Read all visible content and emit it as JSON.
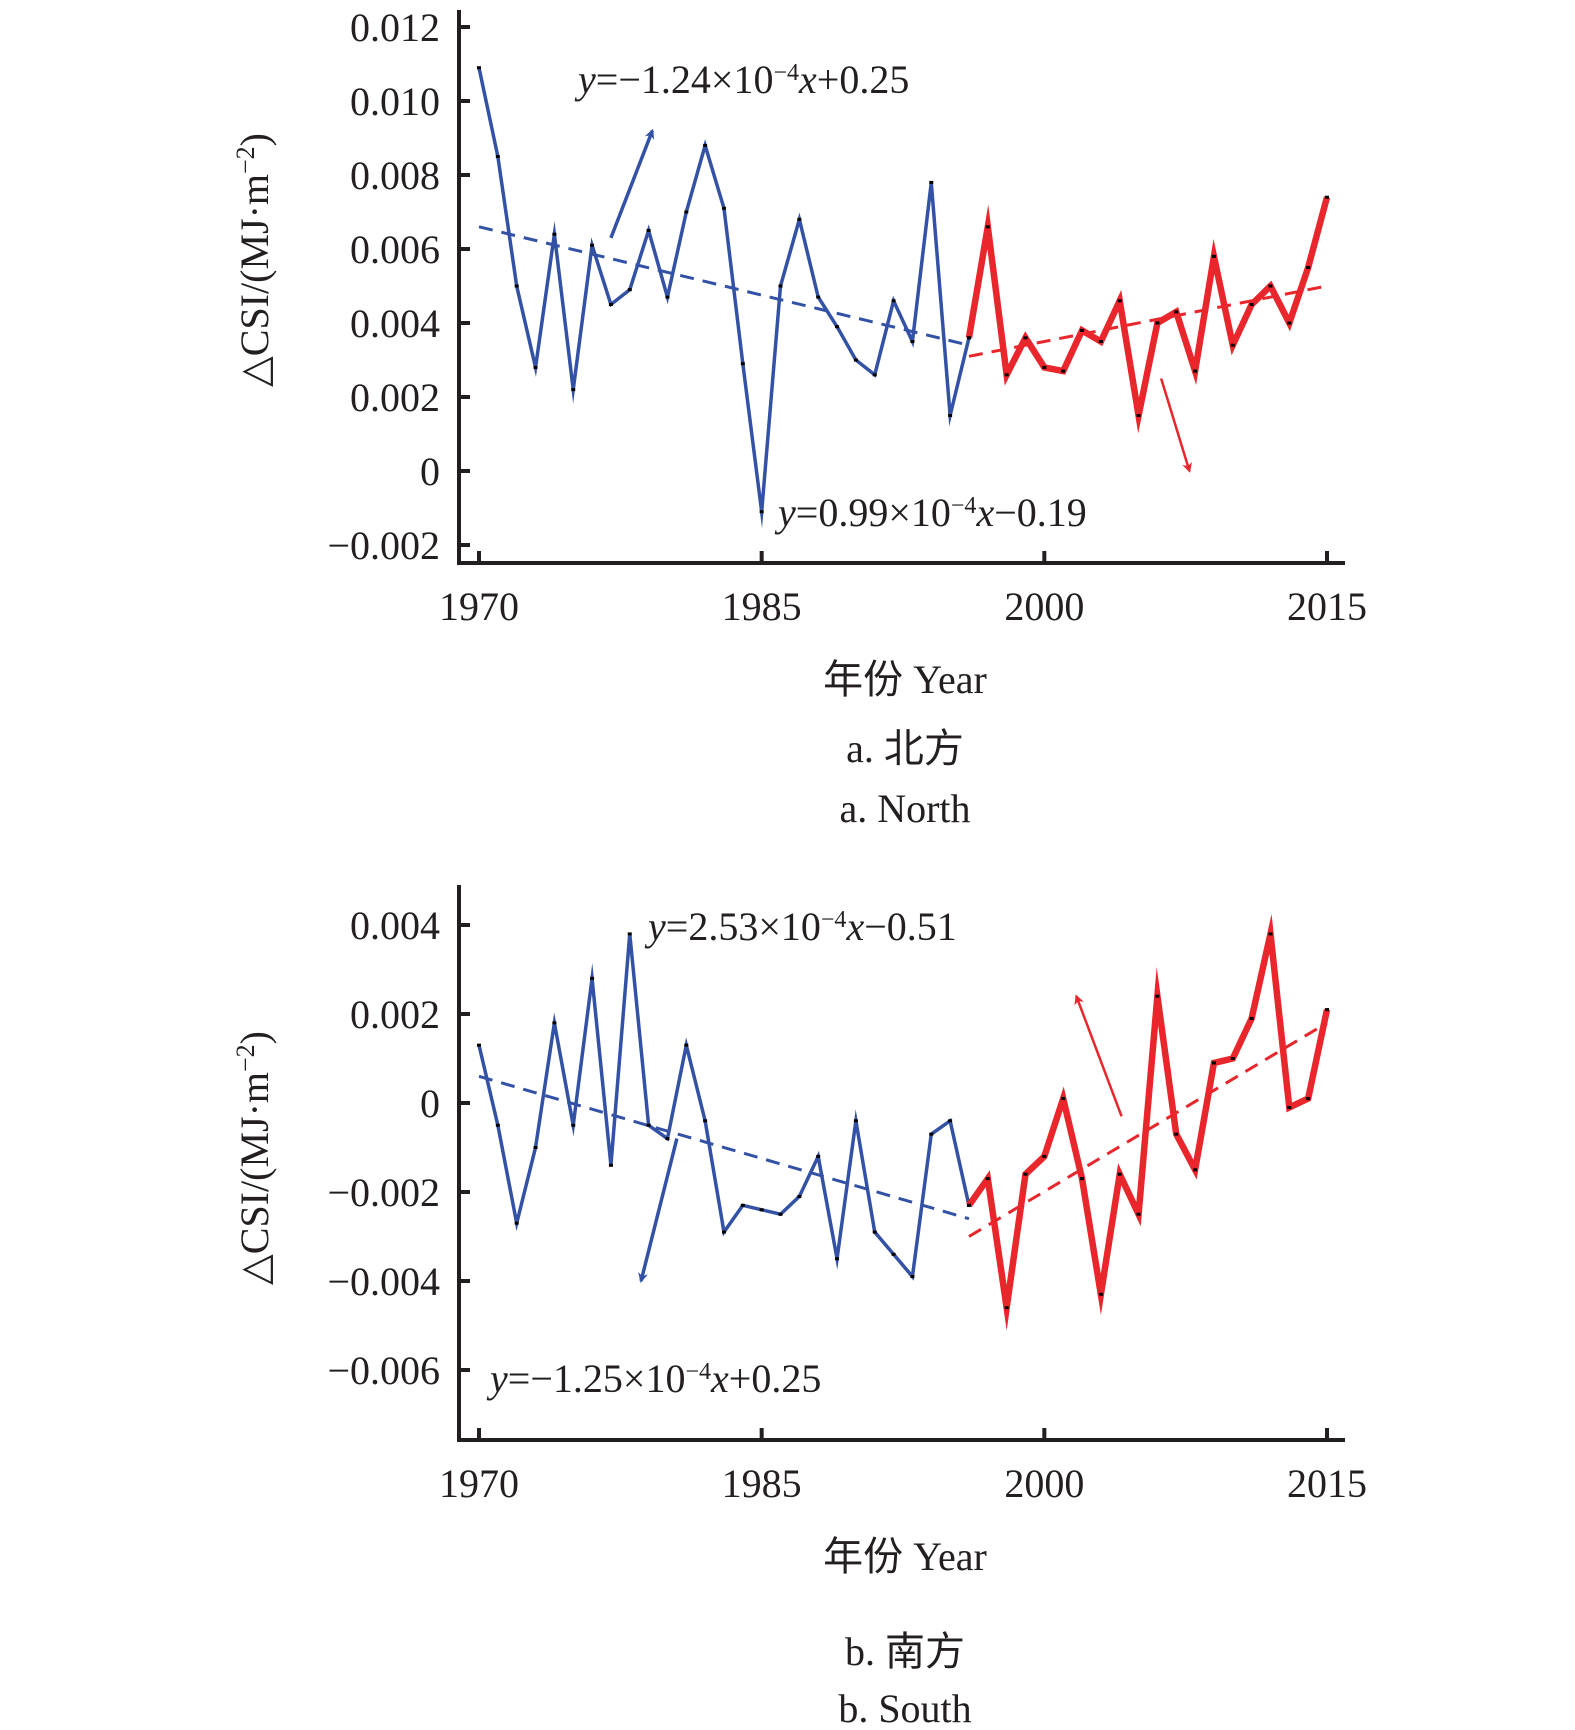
{
  "figure": {
    "colors": {
      "early": "#3352a6",
      "late": "#e8262b",
      "axis": "#231f20",
      "marker": "#000000"
    }
  },
  "chart_data": [
    {
      "id": "north",
      "type": "line",
      "title": "",
      "caption_cn": "a. 北方",
      "caption_en": "a. North",
      "xlabel": "年份 Year",
      "ylabel": "△CSI/(MJ·m⁻²)",
      "ylabel_main": "△CSI/(MJ·m",
      "ylabel_sup": "−2",
      "ylabel_close": ")",
      "xlim": [
        1969,
        2016
      ],
      "ylim": [
        -0.0025,
        0.0125
      ],
      "xticks": [
        1970,
        1985,
        2000,
        2015
      ],
      "xtick_labels": [
        "1970",
        "1985",
        "2000",
        "2015"
      ],
      "yticks": [
        0.012,
        0.01,
        0.008,
        0.006,
        0.004,
        0.002,
        0,
        -0.002
      ],
      "ytick_labels": [
        "0.012",
        "0.010",
        "0.008",
        "0.006",
        "0.004",
        "0.002",
        "0",
        "−0.002"
      ],
      "grid": false,
      "series": [
        {
          "name": "1970–1996",
          "color": "#3352a6",
          "x": [
            1970,
            1971,
            1972,
            1973,
            1974,
            1975,
            1976,
            1977,
            1978,
            1979,
            1980,
            1981,
            1982,
            1983,
            1984,
            1985,
            1986,
            1987,
            1988,
            1989,
            1990,
            1991,
            1992,
            1993,
            1994,
            1995,
            1996
          ],
          "values": [
            0.0109,
            0.0085,
            0.005,
            0.0028,
            0.0064,
            0.0022,
            0.0061,
            0.0045,
            0.0049,
            0.0065,
            0.0047,
            0.007,
            0.0088,
            0.0071,
            0.0029,
            -0.0011,
            0.005,
            0.0068,
            0.0047,
            0.0039,
            0.003,
            0.0026,
            0.0046,
            0.0035,
            0.0078,
            0.0015,
            0.0036
          ]
        },
        {
          "name": "1996–2015",
          "color": "#e8262b",
          "x": [
            1996,
            1997,
            1998,
            1999,
            2000,
            2001,
            2002,
            2003,
            2004,
            2005,
            2006,
            2007,
            2008,
            2009,
            2010,
            2011,
            2012,
            2013,
            2014,
            2015
          ],
          "values": [
            0.0036,
            0.0066,
            0.0026,
            0.0036,
            0.0028,
            0.0027,
            0.0038,
            0.0035,
            0.0046,
            0.0015,
            0.004,
            0.0043,
            0.0027,
            0.0058,
            0.0034,
            0.0045,
            0.005,
            0.004,
            0.0055,
            0.0074
          ]
        }
      ],
      "trendlines": [
        {
          "series": "1970–1996",
          "x": [
            1970,
            1996
          ],
          "y": [
            0.0066,
            0.0034
          ],
          "color": "#3352a6"
        },
        {
          "series": "1996–2015",
          "x": [
            1996,
            2015
          ],
          "y": [
            0.0031,
            0.005
          ],
          "color": "#e8262b"
        }
      ],
      "annotations": [
        {
          "text_y": "y",
          "text_pre": "=−1.24×10",
          "text_sup": "−4",
          "text_x": "x",
          "text_post": "+0.25",
          "series": "1970–1996"
        },
        {
          "text_y": "y",
          "text_pre": "=0.99×10",
          "text_sup": "−4",
          "text_x": "x",
          "text_post": "−0.19",
          "series": "1996–2015"
        }
      ],
      "arrows": [
        {
          "color": "#3352a6",
          "from": [
            1977,
            0.0063
          ],
          "to": [
            1979.2,
            0.0092
          ]
        },
        {
          "color": "#e8262b",
          "from": [
            2006.2,
            0.0025
          ],
          "to": [
            2007.7,
            0.0
          ]
        }
      ]
    },
    {
      "id": "south",
      "type": "line",
      "title": "",
      "caption_cn": "b. 南方",
      "caption_en": "b. South",
      "xlabel": "年份 Year",
      "ylabel": "△CSI/(MJ·m⁻²)",
      "ylabel_main": "△CSI/(MJ·m",
      "ylabel_sup": "−2",
      "ylabel_close": ")",
      "xlim": [
        1969,
        2016
      ],
      "ylim": [
        -0.0075,
        0.005
      ],
      "xticks": [
        1970,
        1985,
        2000,
        2015
      ],
      "xtick_labels": [
        "1970",
        "1985",
        "2000",
        "2015"
      ],
      "yticks": [
        0.004,
        0.002,
        0,
        -0.002,
        -0.004,
        -0.006
      ],
      "ytick_labels": [
        "0.004",
        "0.002",
        "0",
        "−0.002",
        "−0.004",
        "−0.006"
      ],
      "grid": false,
      "series": [
        {
          "name": "1970–1996",
          "color": "#3352a6",
          "x": [
            1970,
            1971,
            1972,
            1973,
            1974,
            1975,
            1976,
            1977,
            1978,
            1979,
            1980,
            1981,
            1982,
            1983,
            1984,
            1985,
            1986,
            1987,
            1988,
            1989,
            1990,
            1991,
            1992,
            1993,
            1994,
            1995,
            1996
          ],
          "values": [
            0.0013,
            -0.0005,
            -0.0027,
            -0.001,
            0.0018,
            -0.0005,
            0.0028,
            -0.0014,
            0.0038,
            -0.0005,
            -0.0008,
            0.0013,
            -0.0004,
            -0.0029,
            -0.0023,
            -0.0024,
            -0.0025,
            -0.0021,
            -0.0012,
            -0.0035,
            -0.0004,
            -0.0029,
            -0.0034,
            -0.0039,
            -0.0007,
            -0.0004,
            -0.0023
          ]
        },
        {
          "name": "1996–2015",
          "color": "#e8262b",
          "x": [
            1996,
            1997,
            1998,
            1999,
            2000,
            2001,
            2002,
            2003,
            2004,
            2005,
            2006,
            2007,
            2008,
            2009,
            2010,
            2011,
            2012,
            2013,
            2014,
            2015
          ],
          "values": [
            -0.0023,
            -0.0017,
            -0.0046,
            -0.0016,
            -0.0012,
            0.0001,
            -0.0017,
            -0.0043,
            -0.0016,
            -0.0025,
            0.0024,
            -0.0007,
            -0.0015,
            0.0009,
            0.001,
            0.0019,
            0.0038,
            -0.0001,
            0.0001,
            0.0021
          ]
        }
      ],
      "trendlines": [
        {
          "series": "1970–1996",
          "x": [
            1970,
            1996
          ],
          "y": [
            0.0006,
            -0.0026
          ],
          "color": "#3352a6"
        },
        {
          "series": "1996–2015",
          "x": [
            1996,
            2015
          ],
          "y": [
            -0.003,
            0.0018
          ],
          "color": "#e8262b"
        }
      ],
      "annotations": [
        {
          "text_y": "y",
          "text_pre": "=2.53×10",
          "text_sup": "−4",
          "text_x": "x",
          "text_post": "−0.51",
          "series": "1996–2015"
        },
        {
          "text_y": "y",
          "text_pre": "=−1.25×10",
          "text_sup": "−4",
          "text_x": "x",
          "text_post": "+0.25",
          "series": "1970–1996"
        }
      ],
      "arrows": [
        {
          "color": "#3352a6",
          "from": [
            1980.5,
            -0.0008
          ],
          "to": [
            1978.6,
            -0.004
          ]
        },
        {
          "color": "#e8262b",
          "from": [
            2004.1,
            -0.0003
          ],
          "to": [
            2001.7,
            0.0024
          ]
        }
      ]
    }
  ]
}
